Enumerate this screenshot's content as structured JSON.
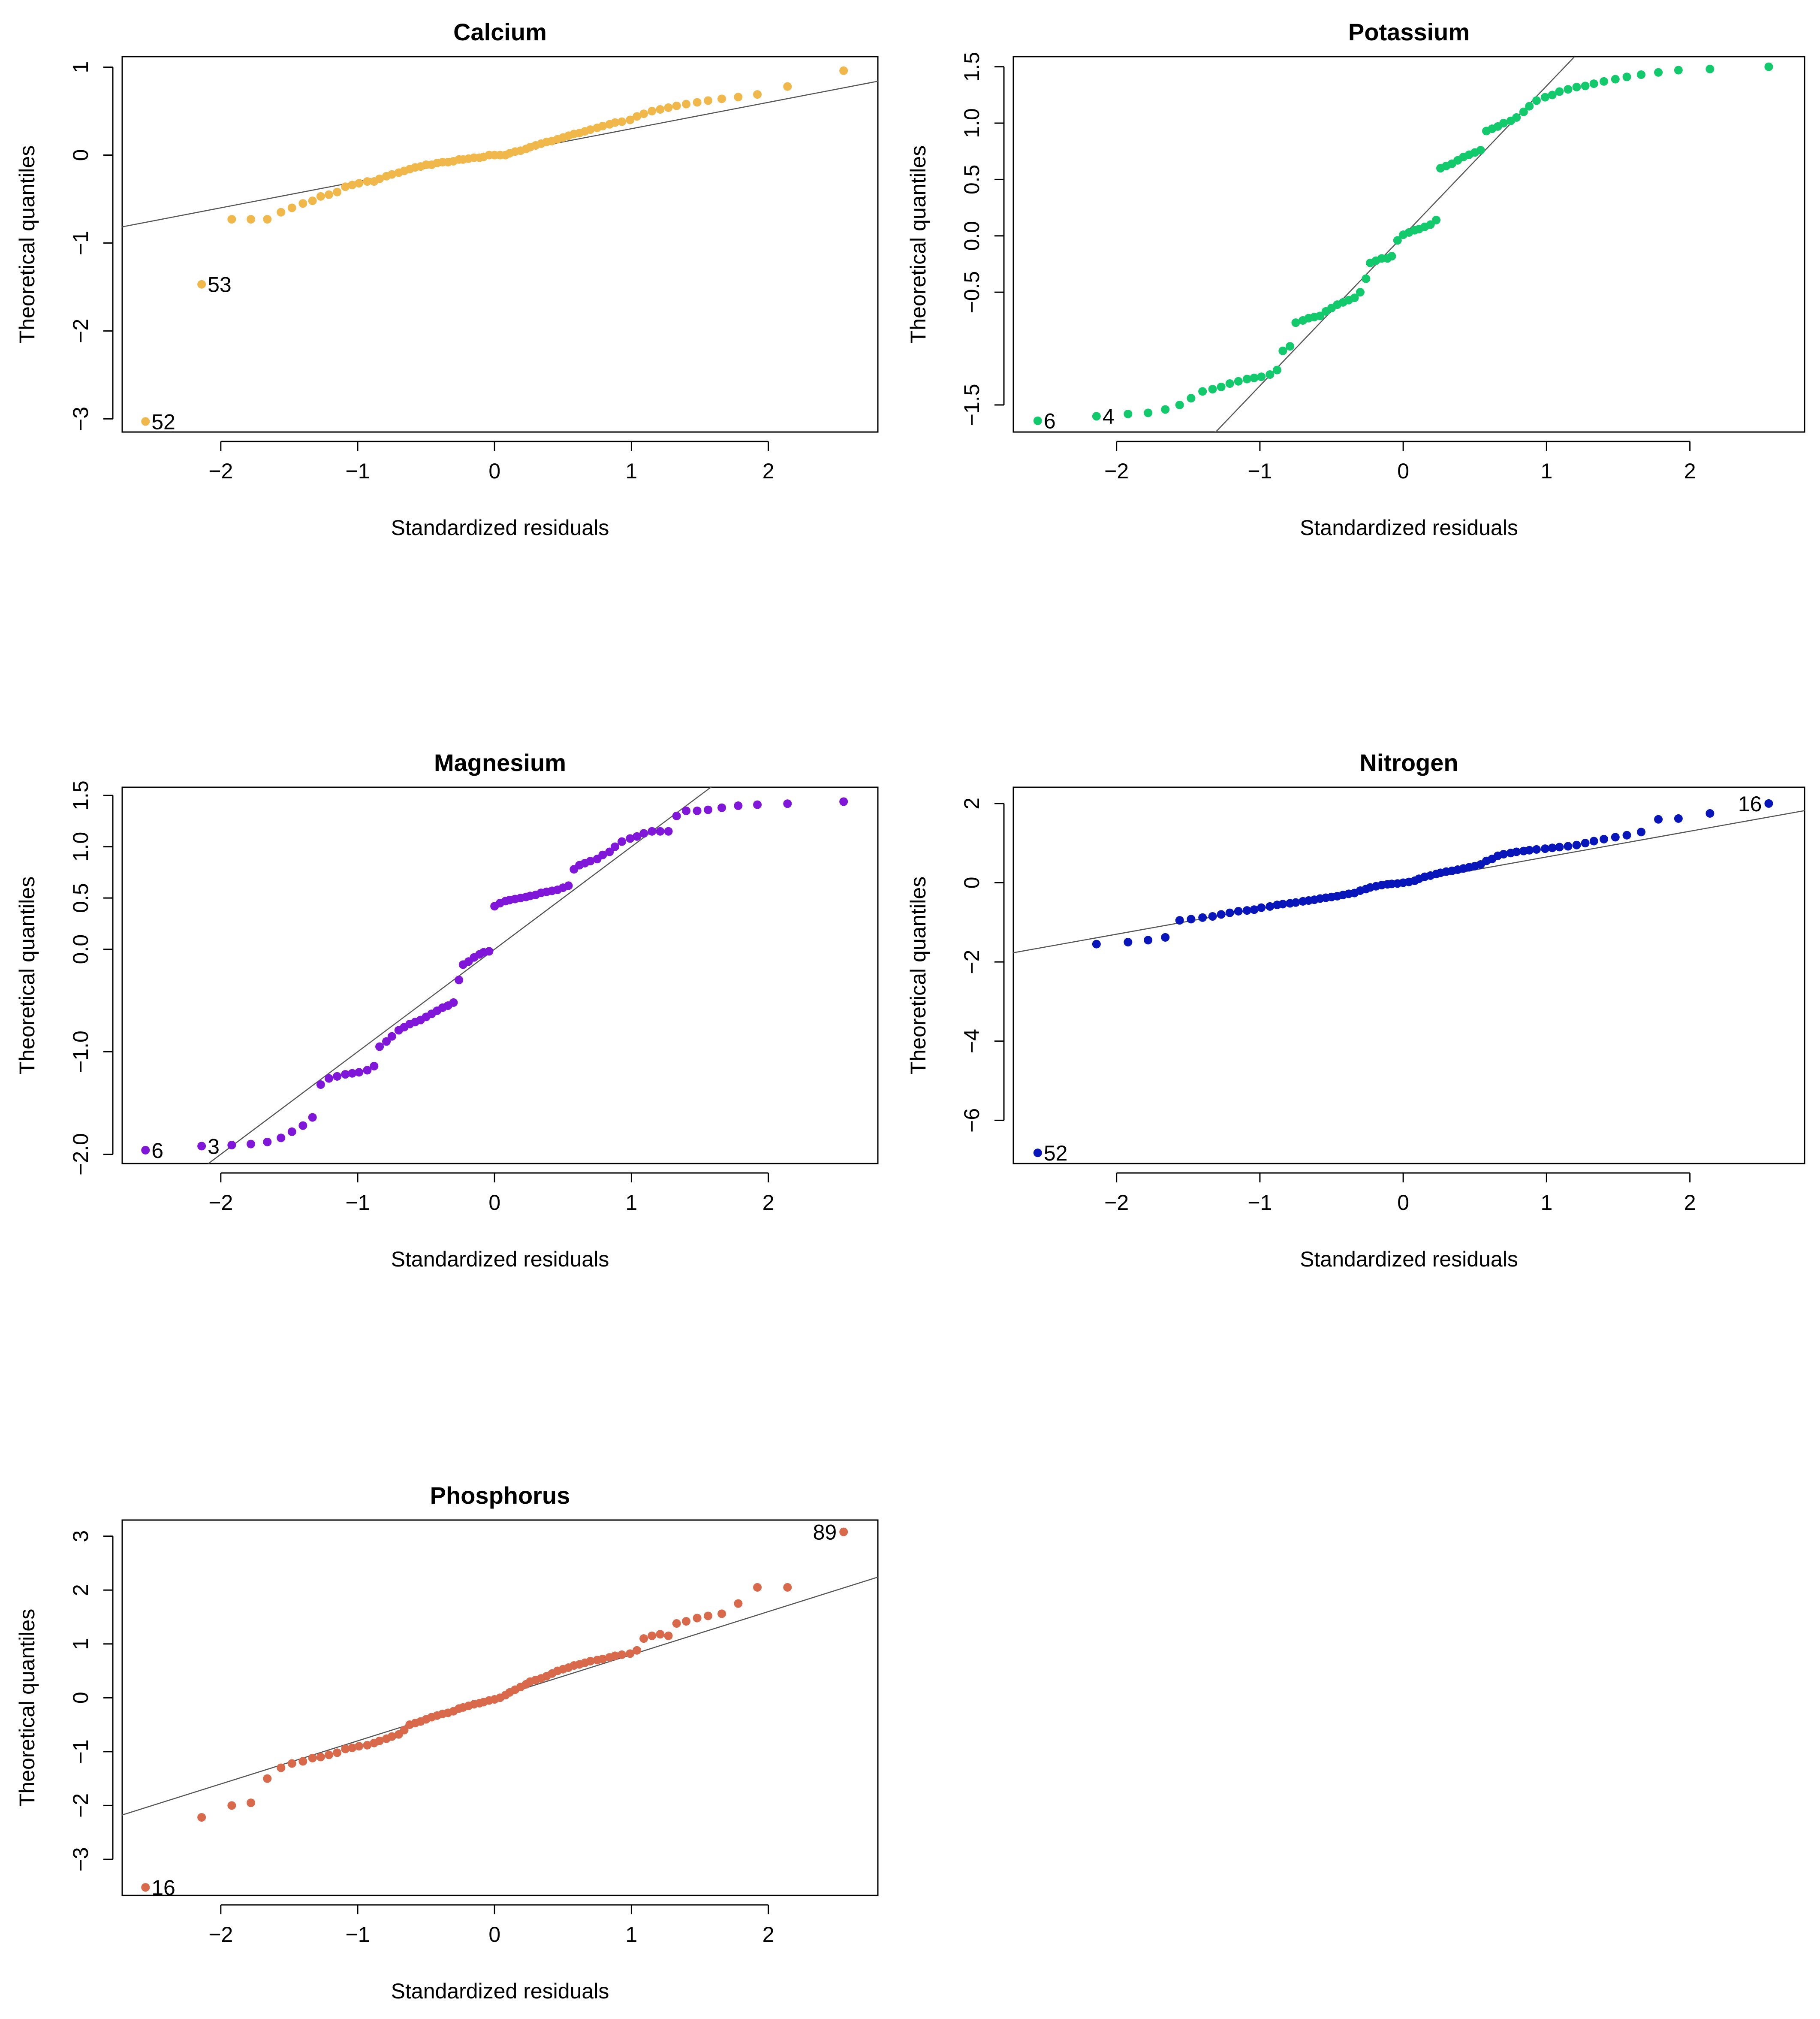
{
  "chart_data": [
    {
      "type": "scatter",
      "title": "Calcium",
      "xlabel": "Standardized residuals",
      "ylabel": "Theoretical quantiles",
      "color": "#F0B84B",
      "xlim": [
        -2.72,
        2.8
      ],
      "ylim": [
        -3.15,
        1.12
      ],
      "xticks": [
        "-2",
        "-1",
        "0",
        "1",
        "2"
      ],
      "yticks": [
        "-3",
        "-2",
        "-1",
        "0",
        "1"
      ],
      "ytick_values": [
        -3,
        -2,
        -1,
        0,
        1
      ],
      "line": {
        "slope": 0.3,
        "intercept": 0.0
      },
      "point_labels": [
        {
          "text": "53",
          "x": -2.14,
          "y": -1.47
        },
        {
          "text": "52",
          "x": -2.55,
          "y": -3.03
        }
      ],
      "series": [
        {
          "name": "Calcium",
          "x": [
            -2.55,
            -2.14,
            -1.92,
            -1.78,
            -1.66,
            -1.56,
            -1.48,
            -1.4,
            -1.33,
            -1.27,
            -1.21,
            -1.15,
            -1.09,
            -1.04,
            -0.99,
            -0.93,
            -0.88,
            -0.84,
            -0.79,
            -0.75,
            -0.7,
            -0.66,
            -0.62,
            -0.58,
            -0.54,
            -0.5,
            -0.46,
            -0.42,
            -0.38,
            -0.34,
            -0.3,
            -0.26,
            -0.23,
            -0.19,
            -0.15,
            -0.11,
            -0.08,
            -0.04,
            0.0,
            0.04,
            0.08,
            0.11,
            0.15,
            0.19,
            0.23,
            0.26,
            0.3,
            0.34,
            0.38,
            0.42,
            0.46,
            0.5,
            0.54,
            0.58,
            0.62,
            0.66,
            0.7,
            0.75,
            0.79,
            0.84,
            0.88,
            0.93,
            0.99,
            1.04,
            1.09,
            1.15,
            1.21,
            1.27,
            1.33,
            1.4,
            1.48,
            1.56,
            1.66,
            1.78,
            1.92,
            2.14,
            2.55
          ],
          "y": [
            -3.03,
            -1.47,
            -0.73,
            -0.73,
            -0.73,
            -0.65,
            -0.6,
            -0.55,
            -0.52,
            -0.47,
            -0.45,
            -0.42,
            -0.36,
            -0.34,
            -0.32,
            -0.3,
            -0.3,
            -0.27,
            -0.24,
            -0.22,
            -0.2,
            -0.18,
            -0.16,
            -0.14,
            -0.13,
            -0.11,
            -0.11,
            -0.09,
            -0.08,
            -0.08,
            -0.07,
            -0.05,
            -0.05,
            -0.04,
            -0.03,
            -0.03,
            -0.02,
            0.0,
            0.0,
            0.0,
            0.0,
            0.02,
            0.04,
            0.05,
            0.07,
            0.09,
            0.11,
            0.13,
            0.15,
            0.16,
            0.18,
            0.2,
            0.22,
            0.24,
            0.25,
            0.27,
            0.29,
            0.31,
            0.33,
            0.35,
            0.37,
            0.38,
            0.4,
            0.44,
            0.47,
            0.5,
            0.52,
            0.54,
            0.56,
            0.58,
            0.6,
            0.62,
            0.64,
            0.66,
            0.69,
            0.78,
            0.96
          ]
        }
      ]
    },
    {
      "type": "scatter",
      "title": "Potassium",
      "xlabel": "Standardized residuals",
      "ylabel": "Theoretical quantiles",
      "color": "#12C96C",
      "xlim": [
        -2.72,
        2.8
      ],
      "ylim": [
        -1.74,
        1.59
      ],
      "xticks": [
        "-2",
        "-1",
        "0",
        "1",
        "2"
      ],
      "yticks": [
        "-1.5",
        "-0.5",
        "0.0",
        "0.5",
        "1.0",
        "1.5"
      ],
      "ytick_values": [
        -1.5,
        -0.5,
        0.0,
        0.5,
        1.0,
        1.5
      ],
      "line": {
        "slope": 1.33,
        "intercept": 0.0
      },
      "point_labels": [
        {
          "text": "6",
          "x": -2.55,
          "y": -1.64
        },
        {
          "text": "4",
          "x": -2.14,
          "y": -1.6
        }
      ],
      "series": [
        {
          "name": "Potassium",
          "x": [
            -2.55,
            -2.14,
            -1.92,
            -1.78,
            -1.66,
            -1.56,
            -1.48,
            -1.4,
            -1.33,
            -1.27,
            -1.21,
            -1.15,
            -1.09,
            -1.04,
            -0.99,
            -0.93,
            -0.88,
            -0.84,
            -0.79,
            -0.75,
            -0.7,
            -0.66,
            -0.62,
            -0.58,
            -0.54,
            -0.5,
            -0.46,
            -0.42,
            -0.38,
            -0.34,
            -0.3,
            -0.26,
            -0.23,
            -0.19,
            -0.15,
            -0.11,
            -0.08,
            -0.04,
            0.0,
            0.04,
            0.08,
            0.11,
            0.15,
            0.19,
            0.23,
            0.26,
            0.3,
            0.34,
            0.38,
            0.42,
            0.46,
            0.5,
            0.54,
            0.58,
            0.62,
            0.66,
            0.7,
            0.75,
            0.79,
            0.84,
            0.88,
            0.93,
            0.99,
            1.04,
            1.09,
            1.15,
            1.21,
            1.27,
            1.33,
            1.4,
            1.48,
            1.56,
            1.66,
            1.78,
            1.92,
            2.14,
            2.55
          ],
          "y": [
            -1.64,
            -1.6,
            -1.58,
            -1.57,
            -1.54,
            -1.5,
            -1.44,
            -1.38,
            -1.36,
            -1.34,
            -1.31,
            -1.29,
            -1.27,
            -1.26,
            -1.25,
            -1.23,
            -1.19,
            -1.02,
            -0.98,
            -0.77,
            -0.75,
            -0.73,
            -0.72,
            -0.71,
            -0.67,
            -0.64,
            -0.61,
            -0.59,
            -0.57,
            -0.55,
            -0.5,
            -0.38,
            -0.24,
            -0.22,
            -0.2,
            -0.2,
            -0.18,
            -0.04,
            0.01,
            0.03,
            0.05,
            0.06,
            0.08,
            0.1,
            0.14,
            0.6,
            0.62,
            0.64,
            0.67,
            0.7,
            0.72,
            0.74,
            0.76,
            0.93,
            0.95,
            0.97,
            1.0,
            1.02,
            1.05,
            1.1,
            1.15,
            1.2,
            1.23,
            1.25,
            1.28,
            1.3,
            1.32,
            1.33,
            1.35,
            1.37,
            1.39,
            1.41,
            1.43,
            1.45,
            1.47,
            1.48,
            1.5
          ]
        }
      ]
    },
    {
      "type": "scatter",
      "title": "Magnesium",
      "xlabel": "Standardized residuals",
      "ylabel": "Theoretical quantiles",
      "color": "#7F16D8",
      "xlim": [
        -2.72,
        2.8
      ],
      "ylim": [
        -2.09,
        1.58
      ],
      "xticks": [
        "-2",
        "-1",
        "0",
        "1",
        "2"
      ],
      "yticks": [
        "-2.0",
        "-1.0",
        "0.0",
        "0.5",
        "1.0",
        "1.5"
      ],
      "ytick_values": [
        -2.0,
        -1.0,
        0.0,
        0.5,
        1.0,
        1.5
      ],
      "line": {
        "slope": 1.0,
        "intercept": 0.0
      },
      "point_labels": [
        {
          "text": "6",
          "x": -2.55,
          "y": -1.96
        },
        {
          "text": "3",
          "x": -2.14,
          "y": -1.92
        }
      ],
      "series": [
        {
          "name": "Magnesium",
          "x": [
            -2.55,
            -2.14,
            -1.92,
            -1.78,
            -1.66,
            -1.56,
            -1.48,
            -1.4,
            -1.33,
            -1.27,
            -1.21,
            -1.15,
            -1.09,
            -1.04,
            -0.99,
            -0.93,
            -0.88,
            -0.84,
            -0.79,
            -0.75,
            -0.7,
            -0.66,
            -0.62,
            -0.58,
            -0.54,
            -0.5,
            -0.46,
            -0.42,
            -0.38,
            -0.34,
            -0.3,
            -0.26,
            -0.23,
            -0.19,
            -0.15,
            -0.11,
            -0.08,
            -0.04,
            0.0,
            0.04,
            0.08,
            0.11,
            0.15,
            0.19,
            0.23,
            0.26,
            0.3,
            0.34,
            0.38,
            0.42,
            0.46,
            0.5,
            0.54,
            0.58,
            0.62,
            0.66,
            0.7,
            0.75,
            0.79,
            0.84,
            0.88,
            0.93,
            0.99,
            1.04,
            1.09,
            1.15,
            1.21,
            1.27,
            1.33,
            1.4,
            1.48,
            1.56,
            1.66,
            1.78,
            1.92,
            2.14,
            2.55
          ],
          "y": [
            -1.96,
            -1.92,
            -1.91,
            -1.9,
            -1.88,
            -1.84,
            -1.78,
            -1.72,
            -1.64,
            -1.32,
            -1.26,
            -1.24,
            -1.22,
            -1.21,
            -1.2,
            -1.18,
            -1.14,
            -0.95,
            -0.9,
            -0.85,
            -0.79,
            -0.76,
            -0.73,
            -0.71,
            -0.69,
            -0.66,
            -0.63,
            -0.6,
            -0.57,
            -0.55,
            -0.52,
            -0.3,
            -0.15,
            -0.12,
            -0.08,
            -0.05,
            -0.03,
            -0.02,
            0.42,
            0.45,
            0.47,
            0.48,
            0.49,
            0.5,
            0.51,
            0.52,
            0.53,
            0.55,
            0.56,
            0.57,
            0.58,
            0.6,
            0.62,
            0.78,
            0.82,
            0.84,
            0.86,
            0.88,
            0.92,
            0.95,
            1.0,
            1.05,
            1.08,
            1.1,
            1.13,
            1.15,
            1.15,
            1.15,
            1.3,
            1.35,
            1.35,
            1.36,
            1.38,
            1.4,
            1.41,
            1.42,
            1.44
          ]
        }
      ]
    },
    {
      "type": "scatter",
      "title": "Nitrogen",
      "xlabel": "Standardized residuals",
      "ylabel": "Theoretical quantiles",
      "color": "#0815B8",
      "xlim": [
        -2.72,
        2.8
      ],
      "ylim": [
        -7.09,
        2.41
      ],
      "xticks": [
        "-2",
        "-1",
        "0",
        "1",
        "2"
      ],
      "yticks": [
        "-6",
        "-4",
        "-2",
        "0",
        "2"
      ],
      "ytick_values": [
        -6,
        -4,
        -2,
        0,
        2
      ],
      "line": {
        "slope": 0.65,
        "intercept": 0.0
      },
      "point_labels": [
        {
          "text": "16",
          "x": 2.55,
          "y": 2.0
        },
        {
          "text": "52",
          "x": -2.55,
          "y": -6.82
        }
      ],
      "series": [
        {
          "name": "Nitrogen",
          "x": [
            -2.55,
            -2.14,
            -1.92,
            -1.78,
            -1.66,
            -1.56,
            -1.48,
            -1.4,
            -1.33,
            -1.27,
            -1.21,
            -1.15,
            -1.09,
            -1.04,
            -0.99,
            -0.93,
            -0.88,
            -0.84,
            -0.79,
            -0.75,
            -0.7,
            -0.66,
            -0.62,
            -0.58,
            -0.54,
            -0.5,
            -0.46,
            -0.42,
            -0.38,
            -0.34,
            -0.3,
            -0.26,
            -0.23,
            -0.19,
            -0.15,
            -0.11,
            -0.08,
            -0.04,
            0.0,
            0.04,
            0.08,
            0.11,
            0.15,
            0.19,
            0.23,
            0.26,
            0.3,
            0.34,
            0.38,
            0.42,
            0.46,
            0.5,
            0.54,
            0.58,
            0.62,
            0.66,
            0.7,
            0.75,
            0.79,
            0.84,
            0.88,
            0.93,
            0.99,
            1.04,
            1.09,
            1.15,
            1.21,
            1.27,
            1.33,
            1.4,
            1.48,
            1.56,
            1.66,
            1.78,
            1.92,
            2.14,
            2.55
          ],
          "y": [
            -6.82,
            -1.55,
            -1.5,
            -1.45,
            -1.38,
            -0.95,
            -0.92,
            -0.88,
            -0.85,
            -0.8,
            -0.76,
            -0.72,
            -0.7,
            -0.68,
            -0.63,
            -0.6,
            -0.56,
            -0.54,
            -0.52,
            -0.5,
            -0.47,
            -0.45,
            -0.43,
            -0.4,
            -0.38,
            -0.36,
            -0.34,
            -0.31,
            -0.28,
            -0.26,
            -0.2,
            -0.16,
            -0.12,
            -0.09,
            -0.06,
            -0.04,
            -0.03,
            -0.02,
            0.0,
            0.02,
            0.05,
            0.1,
            0.15,
            0.18,
            0.22,
            0.25,
            0.28,
            0.3,
            0.33,
            0.36,
            0.39,
            0.42,
            0.46,
            0.55,
            0.6,
            0.68,
            0.72,
            0.75,
            0.78,
            0.8,
            0.82,
            0.84,
            0.86,
            0.88,
            0.9,
            0.92,
            0.95,
            1.0,
            1.05,
            1.1,
            1.15,
            1.2,
            1.28,
            1.6,
            1.62,
            1.75,
            2.0
          ]
        }
      ]
    },
    {
      "type": "scatter",
      "title": "Phosphorus",
      "xlabel": "Standardized residuals",
      "ylabel": "Theoretical quantiles",
      "color": "#D9694B",
      "xlim": [
        -2.72,
        2.8
      ],
      "ylim": [
        -3.67,
        3.3
      ],
      "xticks": [
        "-2",
        "-1",
        "0",
        "1",
        "2"
      ],
      "yticks": [
        "-3",
        "-2",
        "-1",
        "0",
        "1",
        "2",
        "3"
      ],
      "ytick_values": [
        -3,
        -2,
        -1,
        0,
        1,
        2,
        3
      ],
      "line": {
        "slope": 0.8,
        "intercept": 0.0
      },
      "point_labels": [
        {
          "text": "89",
          "x": 2.55,
          "y": 3.08
        },
        {
          "text": "16",
          "x": -2.55,
          "y": -3.52
        }
      ],
      "series": [
        {
          "name": "Phosphorus",
          "x": [
            -2.55,
            -2.14,
            -1.92,
            -1.78,
            -1.66,
            -1.56,
            -1.48,
            -1.4,
            -1.33,
            -1.27,
            -1.21,
            -1.15,
            -1.09,
            -1.04,
            -0.99,
            -0.93,
            -0.88,
            -0.84,
            -0.79,
            -0.75,
            -0.7,
            -0.66,
            -0.62,
            -0.58,
            -0.54,
            -0.5,
            -0.46,
            -0.42,
            -0.38,
            -0.34,
            -0.3,
            -0.26,
            -0.23,
            -0.19,
            -0.15,
            -0.11,
            -0.08,
            -0.04,
            0.0,
            0.04,
            0.08,
            0.11,
            0.15,
            0.19,
            0.23,
            0.26,
            0.3,
            0.34,
            0.38,
            0.42,
            0.46,
            0.5,
            0.54,
            0.58,
            0.62,
            0.66,
            0.7,
            0.75,
            0.79,
            0.84,
            0.88,
            0.93,
            0.99,
            1.04,
            1.09,
            1.15,
            1.21,
            1.27,
            1.33,
            1.4,
            1.48,
            1.56,
            1.66,
            1.78,
            1.92,
            2.14,
            2.55
          ],
          "y": [
            -3.52,
            -2.22,
            -2.0,
            -1.95,
            -1.5,
            -1.3,
            -1.22,
            -1.18,
            -1.12,
            -1.1,
            -1.06,
            -1.02,
            -0.95,
            -0.93,
            -0.9,
            -0.88,
            -0.84,
            -0.8,
            -0.76,
            -0.72,
            -0.68,
            -0.6,
            -0.5,
            -0.47,
            -0.44,
            -0.4,
            -0.36,
            -0.33,
            -0.3,
            -0.28,
            -0.25,
            -0.2,
            -0.18,
            -0.15,
            -0.12,
            -0.1,
            -0.08,
            -0.05,
            -0.03,
            0.0,
            0.05,
            0.1,
            0.15,
            0.2,
            0.25,
            0.3,
            0.33,
            0.36,
            0.4,
            0.45,
            0.5,
            0.53,
            0.56,
            0.6,
            0.62,
            0.65,
            0.68,
            0.7,
            0.72,
            0.75,
            0.78,
            0.8,
            0.82,
            0.88,
            1.1,
            1.15,
            1.18,
            1.15,
            1.38,
            1.42,
            1.48,
            1.52,
            1.56,
            1.75,
            2.05,
            2.05,
            3.08
          ]
        }
      ]
    }
  ]
}
